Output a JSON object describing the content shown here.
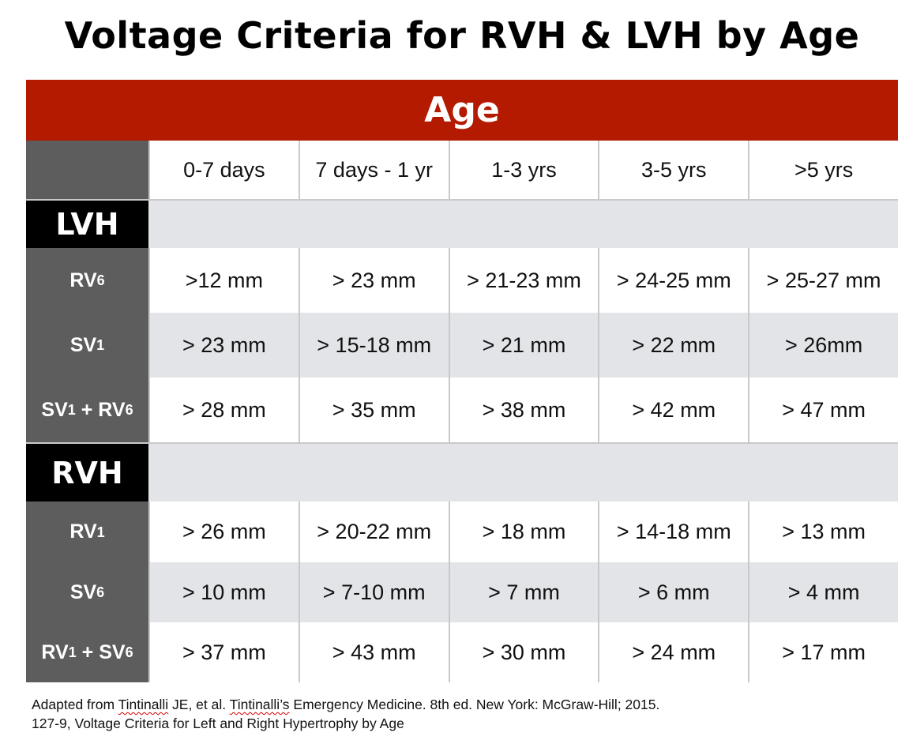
{
  "title": "Voltage Criteria for RVH & LVH by Age",
  "age_header": "Age",
  "age_columns": [
    "0-7 days",
    "7 days - 1 yr",
    "1-3 yrs",
    "3-5 yrs",
    ">5 yrs"
  ],
  "sections": [
    {
      "name": "LVH",
      "rows": [
        {
          "label_main": "RV",
          "label_sub": "6",
          "label_rest": "",
          "label_sub2": "",
          "values": [
            ">12 mm",
            "> 23 mm",
            "> 21-23 mm",
            "> 24-25 mm",
            "> 25-27 mm"
          ]
        },
        {
          "label_main": "SV",
          "label_sub": "1",
          "label_rest": "",
          "label_sub2": "",
          "values": [
            "> 23 mm",
            "> 15-18 mm",
            "> 21 mm",
            "> 22 mm",
            "> 26mm"
          ]
        },
        {
          "label_main": "SV",
          "label_sub": "1",
          "label_rest": " + RV",
          "label_sub2": "6",
          "values": [
            "> 28 mm",
            "> 35 mm",
            "> 38 mm",
            "> 42 mm",
            "> 47 mm"
          ]
        }
      ]
    },
    {
      "name": "RVH",
      "rows": [
        {
          "label_main": "RV",
          "label_sub": "1",
          "label_rest": "",
          "label_sub2": "",
          "values": [
            "> 26 mm",
            "> 20-22 mm",
            "> 18 mm",
            "> 14-18 mm",
            "> 13 mm"
          ]
        },
        {
          "label_main": "SV",
          "label_sub": "6",
          "label_rest": "",
          "label_sub2": "",
          "values": [
            "> 10 mm",
            "> 7-10 mm",
            "> 7 mm",
            "> 6 mm",
            "> 4 mm"
          ]
        },
        {
          "label_main": "RV",
          "label_sub": "1",
          "label_rest": " + SV",
          "label_sub2": "6",
          "values": [
            "> 37 mm",
            "> 43 mm",
            "> 30 mm",
            "> 24 mm",
            "> 17 mm"
          ]
        }
      ]
    }
  ],
  "source": {
    "line1_prefix": "Adapted from ",
    "line1_author": "Tintinalli",
    "line1_mid": " JE, et al. ",
    "line1_book": "Tintinalli’s",
    "line1_rest": " Emergency Medicine. 8th ed. New York: McGraw-Hill; 2015.",
    "line2": "127-9, Voltage Criteria for Left and Right Hypertrophy by Age"
  },
  "colors": {
    "age_bar": "#b31a00",
    "label_bg": "#5d5d5d",
    "section_label_bg": "#000000",
    "stripe": "#e3e4e8",
    "divider": "#c9c9c9"
  }
}
